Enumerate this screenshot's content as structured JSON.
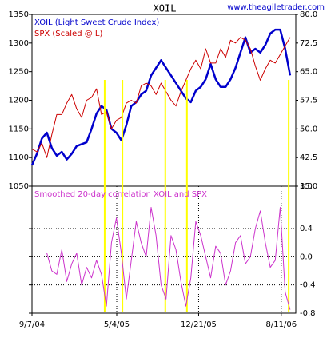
{
  "chart_data": [
    {
      "type": "line",
      "title": "XOIL",
      "source": "www.theagiletrader.com",
      "x": [
        "2004-09-07",
        "2004-09-21",
        "2004-10-05",
        "2004-10-19",
        "2004-11-02",
        "2004-11-16",
        "2004-11-30",
        "2004-12-14",
        "2004-12-28",
        "2005-01-11",
        "2005-01-25",
        "2005-02-08",
        "2005-02-22",
        "2005-03-08",
        "2005-03-22",
        "2005-04-05",
        "2005-04-19",
        "2005-05-03",
        "2005-05-17",
        "2005-05-31",
        "2005-06-14",
        "2005-06-28",
        "2005-07-12",
        "2005-07-26",
        "2005-08-09",
        "2005-08-23",
        "2005-09-06",
        "2005-09-20",
        "2005-10-04",
        "2005-10-18",
        "2005-11-01",
        "2005-11-15",
        "2005-11-29",
        "2005-12-13",
        "2005-12-27",
        "2006-01-10",
        "2006-01-24",
        "2006-02-07",
        "2006-02-21",
        "2006-03-07",
        "2006-03-21",
        "2006-04-04",
        "2006-04-18",
        "2006-05-02",
        "2006-05-16",
        "2006-05-30",
        "2006-06-13",
        "2006-06-27",
        "2006-07-11",
        "2006-07-25",
        "2006-08-08",
        "2006-08-22",
        "2006-09-05"
      ],
      "xlim": [
        "2004-09-07",
        "2006-09-21"
      ],
      "ylim": [
        1050,
        1350
      ],
      "yticks": [
        1050,
        1100,
        1150,
        1200,
        1250,
        1300,
        1350
      ],
      "y2lim": [
        35,
        80
      ],
      "y2ticks": [
        {
          "value": 35,
          "label": "35.0"
        },
        42.5,
        {
          "value": 50,
          "label": "50.0"
        },
        57.5,
        {
          "value": 65,
          "label": "65.0"
        },
        72.5,
        {
          "value": 80,
          "label": "80.0"
        }
      ],
      "series": [
        {
          "name": "XOIL (Light Sweet Crude Index)",
          "color": "#0000cc",
          "axis": "y2",
          "values": [
            40.5,
            43.5,
            47.5,
            49,
            45,
            43,
            44,
            42,
            43.5,
            45.5,
            46,
            46.5,
            50,
            54,
            56,
            55,
            50,
            49,
            47,
            51,
            56,
            57,
            59,
            60,
            64,
            66,
            68,
            66,
            64,
            62,
            60,
            58,
            57,
            60,
            61,
            63,
            67,
            63,
            61,
            61,
            63,
            66,
            70,
            74,
            70,
            71,
            70,
            72,
            75,
            76,
            76,
            71,
            64
          ]
        },
        {
          "name": "SPX (Scaled @ L)",
          "color": "#cc0000",
          "values": [
            1115,
            1110,
            1125,
            1100,
            1140,
            1175,
            1175,
            1195,
            1210,
            1185,
            1170,
            1200,
            1205,
            1220,
            1175,
            1180,
            1150,
            1165,
            1170,
            1195,
            1200,
            1195,
            1225,
            1230,
            1225,
            1210,
            1230,
            1215,
            1200,
            1190,
            1215,
            1235,
            1255,
            1270,
            1255,
            1290,
            1265,
            1265,
            1290,
            1275,
            1305,
            1300,
            1310,
            1305,
            1290,
            1260,
            1235,
            1255,
            1270,
            1265,
            1280,
            1295,
            1310
          ]
        }
      ]
    },
    {
      "type": "line",
      "x": [
        "2004-09-07",
        "2004-09-21",
        "2004-10-05",
        "2004-10-19",
        "2004-11-02",
        "2004-11-16",
        "2004-11-30",
        "2004-12-14",
        "2004-12-28",
        "2005-01-11",
        "2005-01-25",
        "2005-02-08",
        "2005-02-22",
        "2005-03-08",
        "2005-03-22",
        "2005-04-05",
        "2005-04-19",
        "2005-05-03",
        "2005-05-17",
        "2005-05-31",
        "2005-06-14",
        "2005-06-28",
        "2005-07-12",
        "2005-07-26",
        "2005-08-09",
        "2005-08-23",
        "2005-09-06",
        "2005-09-20",
        "2005-10-04",
        "2005-10-18",
        "2005-11-01",
        "2005-11-15",
        "2005-11-29",
        "2005-12-13",
        "2005-12-27",
        "2006-01-10",
        "2006-01-24",
        "2006-02-07",
        "2006-02-21",
        "2006-03-07",
        "2006-03-21",
        "2006-04-04",
        "2006-04-18",
        "2006-05-02",
        "2006-05-16",
        "2006-05-30",
        "2006-06-13",
        "2006-06-27",
        "2006-07-11",
        "2006-07-25",
        "2006-08-08",
        "2006-08-22",
        "2006-09-05"
      ],
      "xlim": [
        "2004-09-07",
        "2006-09-21"
      ],
      "xticks": [
        {
          "value": "2004-09-07",
          "label": "9/7/04"
        },
        {
          "value": "2005-05-04",
          "label": "5/4/05"
        },
        {
          "value": "2005-12-21",
          "label": "12/21/05"
        },
        {
          "value": "2006-08-11",
          "label": "8/11/06"
        }
      ],
      "ylim": [
        -0.8,
        1.0
      ],
      "yticks": [
        -0.8,
        -0.4,
        {
          "value": 0,
          "label": "0.0"
        },
        0.4,
        {
          "value": 1,
          "label": "1.0"
        }
      ],
      "grid": true,
      "highlight_x": [
        "2005-03-31",
        "2005-05-20",
        "2005-09-18",
        "2005-11-18",
        "2006-09-01"
      ],
      "highlight_color": "#ffff00",
      "series": [
        {
          "name": "Smoothed 20-day correlation XOIL and SPX",
          "color": "#cc33cc",
          "values": [
            null,
            null,
            null,
            0.05,
            -0.2,
            -0.25,
            0.1,
            -0.35,
            -0.1,
            0.05,
            -0.4,
            -0.15,
            -0.3,
            -0.05,
            -0.25,
            -0.7,
            0.2,
            0.55,
            0.05,
            -0.6,
            -0.05,
            0.5,
            0.2,
            0.0,
            0.7,
            0.3,
            -0.4,
            -0.6,
            0.3,
            0.1,
            -0.35,
            -0.7,
            -0.3,
            0.5,
            0.3,
            0.0,
            -0.3,
            0.15,
            0.05,
            -0.4,
            -0.2,
            0.2,
            0.3,
            -0.1,
            0.0,
            0.4,
            0.65,
            0.2,
            -0.15,
            -0.05,
            0.7,
            -0.5,
            -0.75
          ]
        }
      ]
    }
  ]
}
